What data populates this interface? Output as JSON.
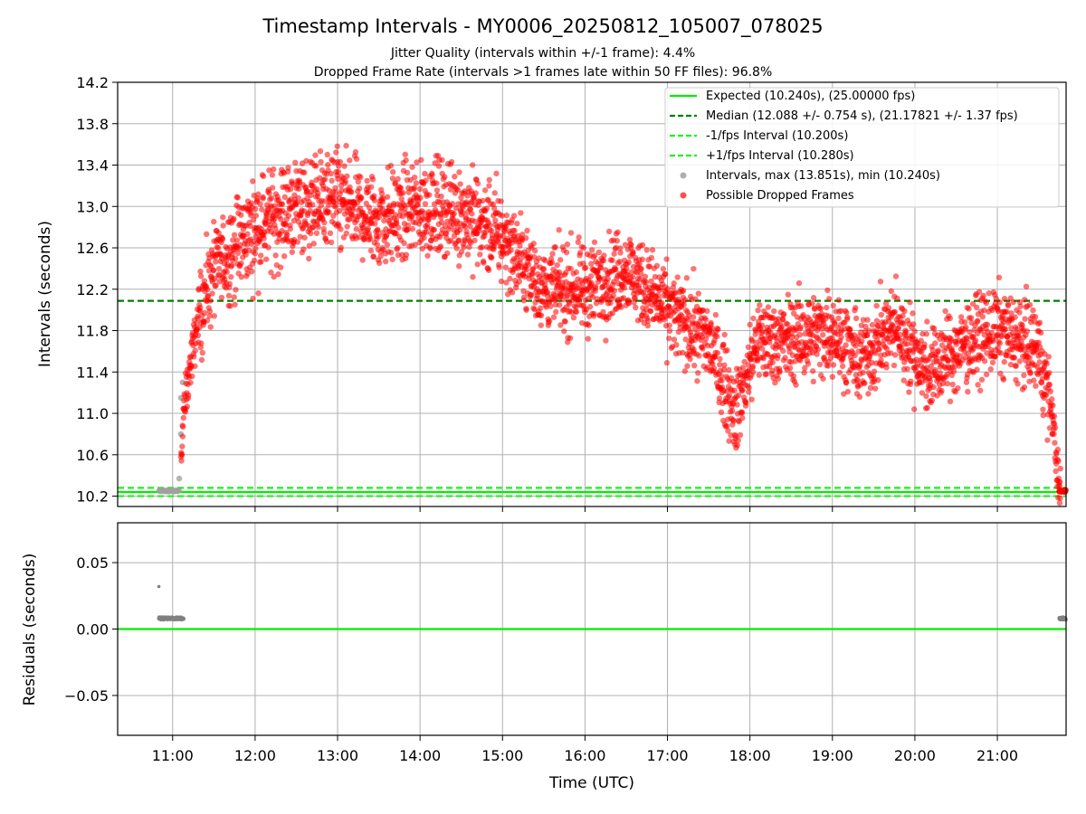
{
  "title": "Timestamp Intervals - MY0006_20250812_105007_078025",
  "subtitle_1": "Jitter Quality (intervals within +/-1 frame): 4.4%",
  "subtitle_2": "Dropped Frame Rate (intervals >1 frames late within 50 FF files): 96.8%",
  "colors": {
    "expected": "#00ee00",
    "median": "#008000",
    "interval_lines": "#22ee22",
    "intervals": "#a0a0a0",
    "dropped": "#ff0000",
    "residuals": "#808080",
    "grid": "#b0b0b0"
  },
  "chart_data": [
    {
      "type": "scatter",
      "xlabel": "",
      "ylabel": "Intervals (seconds)",
      "xlim": [
        "10:20",
        "21:50"
      ],
      "ylim": [
        10.1,
        14.2
      ],
      "yticks": [
        "10.2",
        "10.6",
        "11.0",
        "11.4",
        "11.8",
        "12.2",
        "12.6",
        "13.0",
        "13.4",
        "13.8",
        "14.2"
      ],
      "grid": true,
      "legend_position": "top-right",
      "lines": [
        {
          "name": "Expected (10.240s), (25.00000 fps)",
          "y": 10.24,
          "style": "solid"
        },
        {
          "name": "Median (12.088 +/- 0.754 s), (21.17821 +/- 1.37 fps)",
          "y": 12.088,
          "style": "dashed"
        },
        {
          "name": "-1/fps Interval (10.200s)",
          "y": 10.2,
          "style": "dashed"
        },
        {
          "name": "+1/fps Interval (10.280s)",
          "y": 10.28,
          "style": "dashed"
        }
      ],
      "scatter_series": [
        {
          "name": "Intervals, max (13.851s), min (10.240s)",
          "max": 13.851,
          "min": 10.24
        },
        {
          "name": "Possible Dropped Frames"
        }
      ],
      "trend": [
        {
          "t": "10:50",
          "y": 10.25
        },
        {
          "t": "11:05",
          "y": 10.25
        },
        {
          "t": "11:08",
          "y": 11.0
        },
        {
          "t": "11:12",
          "y": 11.4
        },
        {
          "t": "11:20",
          "y": 12.0
        },
        {
          "t": "11:30",
          "y": 12.4
        },
        {
          "t": "11:45",
          "y": 12.6
        },
        {
          "t": "12:00",
          "y": 12.8
        },
        {
          "t": "12:30",
          "y": 13.0
        },
        {
          "t": "13:00",
          "y": 13.05
        },
        {
          "t": "13:30",
          "y": 12.85
        },
        {
          "t": "14:00",
          "y": 13.0
        },
        {
          "t": "14:30",
          "y": 12.95
        },
        {
          "t": "15:00",
          "y": 12.7
        },
        {
          "t": "15:30",
          "y": 12.2
        },
        {
          "t": "16:00",
          "y": 12.2
        },
        {
          "t": "16:30",
          "y": 12.4
        },
        {
          "t": "17:00",
          "y": 12.0
        },
        {
          "t": "17:30",
          "y": 11.7
        },
        {
          "t": "17:50",
          "y": 11.0
        },
        {
          "t": "18:05",
          "y": 11.7
        },
        {
          "t": "18:30",
          "y": 11.7
        },
        {
          "t": "19:00",
          "y": 11.8
        },
        {
          "t": "19:20",
          "y": 11.5
        },
        {
          "t": "19:45",
          "y": 11.85
        },
        {
          "t": "20:10",
          "y": 11.4
        },
        {
          "t": "20:40",
          "y": 11.7
        },
        {
          "t": "21:00",
          "y": 11.8
        },
        {
          "t": "21:30",
          "y": 11.6
        },
        {
          "t": "21:40",
          "y": 11.0
        },
        {
          "t": "21:45",
          "y": 10.25
        },
        {
          "t": "21:50",
          "y": 10.25
        }
      ]
    },
    {
      "type": "scatter",
      "xlabel": "Time (UTC)",
      "ylabel": "Residuals (seconds)",
      "xlim": [
        "10:20",
        "21:50"
      ],
      "ylim": [
        -0.08,
        0.08
      ],
      "yticks": [
        "−0.05",
        "0.00",
        "0.05"
      ],
      "xticks": [
        "11:00",
        "12:00",
        "13:00",
        "14:00",
        "15:00",
        "16:00",
        "17:00",
        "18:00",
        "19:00",
        "20:00",
        "21:00"
      ],
      "grid": true,
      "zero_line": 0.0,
      "clusters": [
        {
          "t_start": "10:50",
          "t_end": "11:08",
          "y": 0.008
        },
        {
          "t_start": "21:45",
          "t_end": "21:50",
          "y": 0.008
        }
      ],
      "outlier": {
        "t": "10:50",
        "y": 0.032
      }
    }
  ]
}
